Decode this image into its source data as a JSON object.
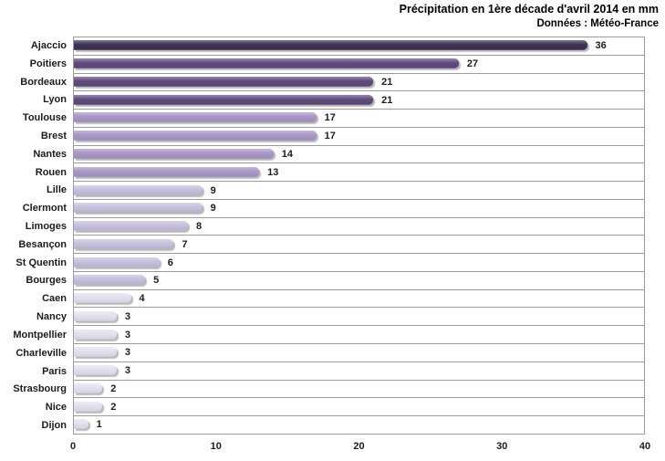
{
  "header": {
    "title": "Précipitation en 1ère décade d'avril 2014 en mm",
    "subtitle": "Données : Météo-France"
  },
  "chart_data": {
    "type": "bar",
    "orientation": "horizontal",
    "title": "Précipitation en 1ère décade d'avril 2014 en mm",
    "subtitle": "Données : Météo-France",
    "categories": [
      "Ajaccio",
      "Poitiers",
      "Bordeaux",
      "Lyon",
      "Toulouse",
      "Brest",
      "Nantes",
      "Rouen",
      "Lille",
      "Clermont",
      "Limoges",
      "Besançon",
      "St Quentin",
      "Bourges",
      "Caen",
      "Nancy",
      "Montpellier",
      "Charleville",
      "Paris",
      "Strasbourg",
      "Nice",
      "Dijon"
    ],
    "values": [
      36,
      27,
      21,
      21,
      17,
      17,
      14,
      13,
      9,
      9,
      8,
      7,
      6,
      5,
      4,
      3,
      3,
      3,
      3,
      2,
      2,
      1
    ],
    "bar_colors": [
      "#3e3154",
      "#5f4b7e",
      "#5f4b7e",
      "#5f4b7e",
      "#a796c7",
      "#a796c7",
      "#a796c7",
      "#a796c7",
      "#c7bfdd",
      "#c7bfdd",
      "#c7bfdd",
      "#c7bfdd",
      "#c7bfdd",
      "#c7bfdd",
      "#e3e0ef",
      "#e3e0ef",
      "#e3e0ef",
      "#e3e0ef",
      "#e3e0ef",
      "#e3e0ef",
      "#e3e0ef",
      "#e3e0ef"
    ],
    "data_labels": true,
    "xlabel": "",
    "ylabel": "",
    "xlim": [
      0,
      40
    ],
    "x_ticks": [
      "0",
      "10",
      "20",
      "30",
      "40"
    ],
    "x_tick_values": [
      0,
      10,
      20,
      30,
      40
    ],
    "grid": "horizontal category separators, no vertical gridlines",
    "legend": "none"
  },
  "colors": {
    "background": "#ffffff",
    "plot_border": "#9b9b9b",
    "gridline": "#9b9b9b",
    "text": "#1c1c1c",
    "tier_30_plus": "#3e3154",
    "tier_20_29": "#5f4b7e",
    "tier_10_19": "#a796c7",
    "tier_5_9": "#c7bfdd",
    "tier_under_5": "#e3e0ef"
  }
}
